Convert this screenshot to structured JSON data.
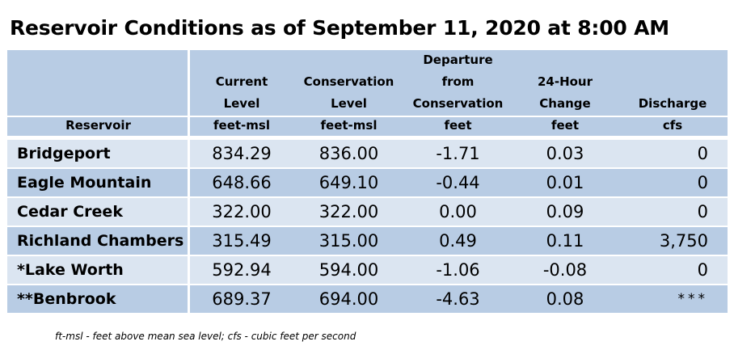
{
  "title": "Reservoir Conditions as of September 11, 2020 at 8:00 AM",
  "columns": [
    {
      "lines": [
        "",
        "",
        "",
        "Reservoir"
      ]
    },
    {
      "lines": [
        "",
        "Current",
        "Level",
        "feet-msl"
      ]
    },
    {
      "lines": [
        "",
        "Conservation",
        "Level",
        "feet-msl"
      ]
    },
    {
      "lines": [
        "Departure",
        "from",
        "Conservation",
        "feet"
      ]
    },
    {
      "lines": [
        "",
        "24-Hour",
        "Change",
        "feet"
      ]
    },
    {
      "lines": [
        "",
        "",
        "Discharge",
        "cfs"
      ]
    }
  ],
  "rows": [
    {
      "name": "Bridgeport",
      "current": "834.29",
      "conservation": "836.00",
      "departure": "-1.71",
      "change": "0.03",
      "discharge": "0"
    },
    {
      "name": "Eagle Mountain",
      "current": "648.66",
      "conservation": "649.10",
      "departure": "-0.44",
      "change": "0.01",
      "discharge": "0"
    },
    {
      "name": "Cedar Creek",
      "current": "322.00",
      "conservation": "322.00",
      "departure": "0.00",
      "change": "0.09",
      "discharge": "0"
    },
    {
      "name": "Richland Chambers",
      "current": "315.49",
      "conservation": "315.00",
      "departure": "0.49",
      "change": "0.11",
      "discharge": "3,750"
    },
    {
      "name": "*Lake Worth",
      "current": "592.94",
      "conservation": "594.00",
      "departure": "-1.06",
      "change": "-0.08",
      "discharge": "0"
    },
    {
      "name": "**Benbrook",
      "current": "689.37",
      "conservation": "694.00",
      "departure": "-4.63",
      "change": "0.08",
      "discharge": "***"
    }
  ],
  "footnote": "ft-msl - feet above mean sea level; cfs - cubic feet per second",
  "colors": {
    "header_bg": "#b8cce4",
    "row_light": "#dbe5f1",
    "row_dark": "#b8cce4"
  }
}
